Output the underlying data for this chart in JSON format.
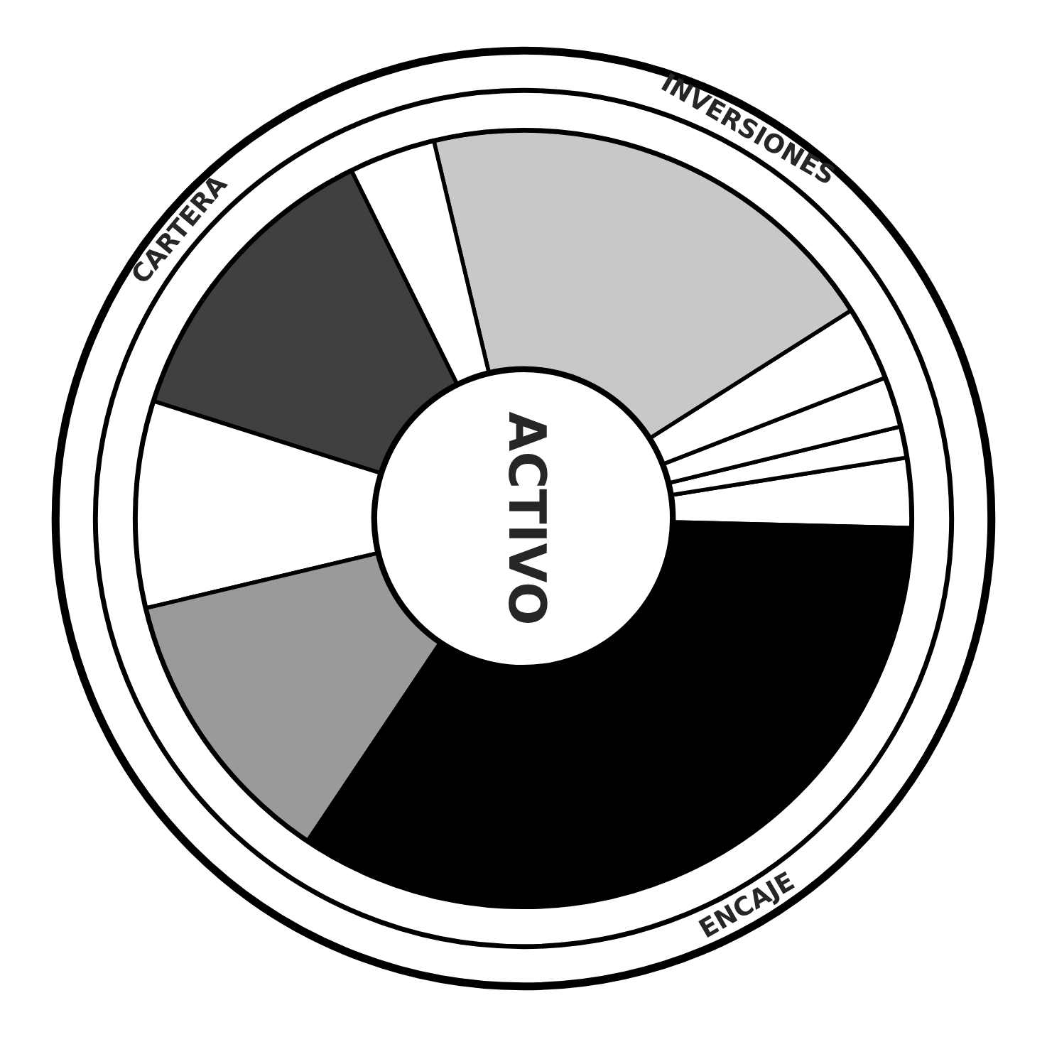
{
  "chart_data": {
    "type": "donut",
    "title": "ACTIVO",
    "categories": [
      null,
      null,
      null,
      null,
      null,
      null,
      null,
      null,
      null,
      null
    ],
    "values": [
      2.9,
      1.3,
      2.1,
      3.1,
      19.7,
      3.6,
      12.8,
      8.6,
      11.9,
      34.0
    ],
    "colors": [
      "#ffffff",
      "#ffffff",
      "#ffffff",
      "#ffffff",
      "#c8c8c8",
      "#ffffff",
      "#404040",
      "#ffffff",
      "#9a9a9a",
      "#000000"
    ],
    "annotations": [
      "INVERSIONES",
      "ENCAJE",
      "CARTERA"
    ]
  }
}
